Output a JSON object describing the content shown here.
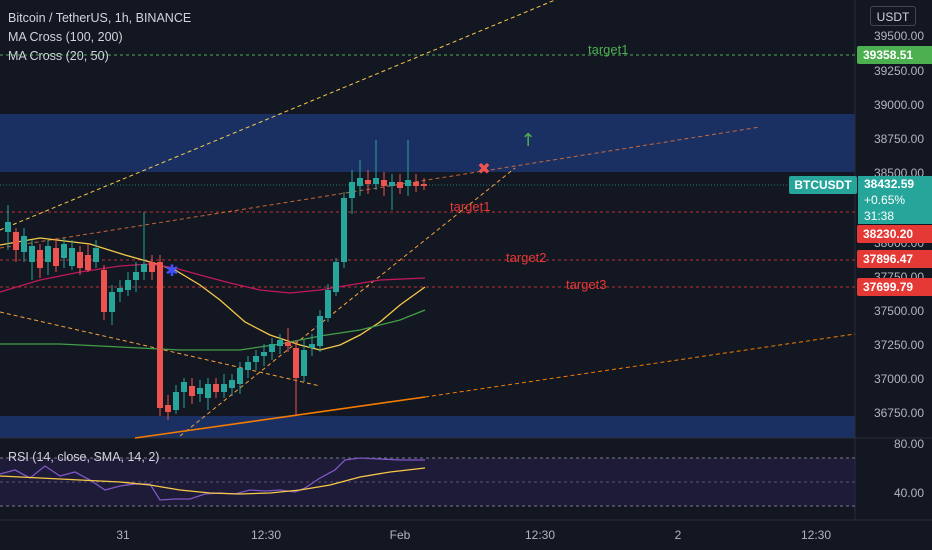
{
  "header": {
    "symbol_line": "Bitcoin / TetherUS, 1h, BINANCE",
    "ma1": "MA Cross (100, 200)",
    "ma2": "MA Cross (20, 50)",
    "rsi": "RSI (14, close, SMA, 14, 2)"
  },
  "currency_button": "USDT",
  "price_axis": [
    "39500.00",
    "39250.00",
    "39000.00",
    "38750.00",
    "38500.00",
    "38000.00",
    "37750.00",
    "37500.00",
    "37250.00",
    "37000.00",
    "36750.00"
  ],
  "rsi_axis": [
    "80.00",
    "40.00"
  ],
  "time_axis": [
    "31",
    "12:30",
    "Feb",
    "12:30",
    "2",
    "12:30"
  ],
  "price_labels": {
    "target_top": "39358.51",
    "last": "38432.59",
    "change": "+0.65%",
    "countdown": "31:38",
    "t1": "38230.20",
    "t2": "37896.47",
    "t3": "37699.79"
  },
  "ticker": "BTCUSDT",
  "annotations": {
    "target_top": "target1",
    "target1": "target1",
    "target2": "target2",
    "target3": "target3"
  },
  "colors": {
    "background": "#131722",
    "up": "#26a69a",
    "down": "#ef5350",
    "zone": "#1e3a7a",
    "green_target": "#4caf50",
    "red_target": "#e53935"
  }
}
